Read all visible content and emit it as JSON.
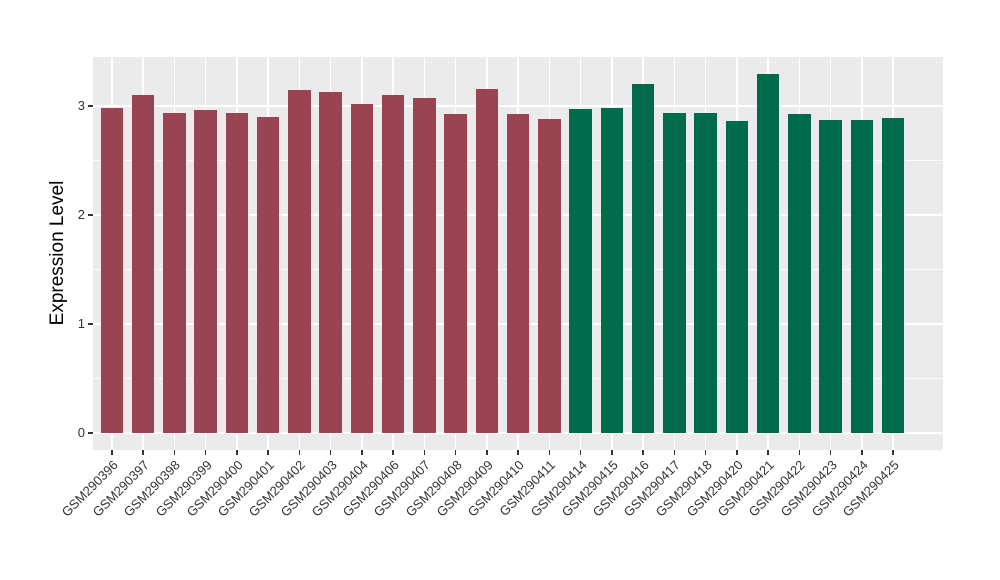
{
  "figure": {
    "background": "#ffffff",
    "panel_background": "#ebebeb",
    "grid_color": "#ffffff",
    "tick_color": "#333333",
    "axis_text_color": "#333333",
    "axis_title_color": "#000000",
    "palette": {
      "maroon": "#9a4453",
      "green": "#006b4b"
    }
  },
  "chart_data": {
    "type": "bar",
    "title": "",
    "xlabel": "",
    "ylabel": "Expression Level",
    "ylim": [
      0,
      3.47
    ],
    "yticks": [
      0,
      1,
      2,
      3
    ],
    "yticks_minor": [
      0.5,
      1.5,
      2.5
    ],
    "grid": "white major and minor horizontal lines plus vertical line per category on gray panel",
    "legend_position": "none",
    "x_tick_label_rotation_deg": 45,
    "categories": [
      "GSM290396",
      "GSM290397",
      "GSM290398",
      "GSM290399",
      "GSM290400",
      "GSM290401",
      "GSM290402",
      "GSM290403",
      "GSM290404",
      "GSM290406",
      "GSM290407",
      "GSM290408",
      "GSM290409",
      "GSM290410",
      "GSM290411",
      "GSM290414",
      "GSM290415",
      "GSM290416",
      "GSM290417",
      "GSM290418",
      "GSM290420",
      "GSM290421",
      "GSM290422",
      "GSM290423",
      "GSM290424",
      "GSM290425"
    ],
    "values": [
      2.98,
      3.1,
      2.94,
      2.96,
      2.94,
      2.9,
      3.15,
      3.13,
      3.02,
      3.1,
      3.07,
      2.93,
      3.16,
      2.93,
      2.88,
      2.97,
      2.98,
      3.2,
      2.94,
      2.94,
      2.86,
      3.29,
      2.93,
      2.87,
      2.87,
      2.89
    ],
    "colors": [
      "#9a4453",
      "#9a4453",
      "#9a4453",
      "#9a4453",
      "#9a4453",
      "#9a4453",
      "#9a4453",
      "#9a4453",
      "#9a4453",
      "#9a4453",
      "#9a4453",
      "#9a4453",
      "#9a4453",
      "#9a4453",
      "#9a4453",
      "#006b4b",
      "#006b4b",
      "#006b4b",
      "#006b4b",
      "#006b4b",
      "#006b4b",
      "#006b4b",
      "#006b4b",
      "#006b4b",
      "#006b4b",
      "#006b4b"
    ],
    "color_groups": [
      {
        "color": "#9a4453",
        "first_sample": "GSM290396",
        "last_sample": "GSM290411",
        "count": 15
      },
      {
        "color": "#006b4b",
        "first_sample": "GSM290414",
        "last_sample": "GSM290425",
        "count": 11
      }
    ]
  }
}
